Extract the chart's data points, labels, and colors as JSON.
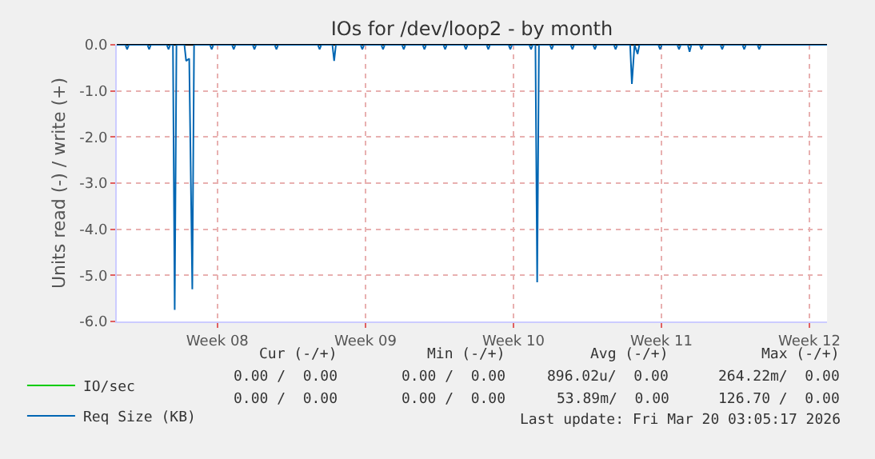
{
  "chart_data": {
    "type": "line",
    "title": "IOs for /dev/loop2 - by month",
    "ylabel": "Units read (-) / write (+)",
    "xlim": [
      "2026-02-11T05:45",
      "2026-03-16T20:00"
    ],
    "xticks": [
      {
        "value": "2026-02-16",
        "label": "Week 08"
      },
      {
        "value": "2026-02-23",
        "label": "Week 09"
      },
      {
        "value": "2026-03-02",
        "label": "Week 10"
      },
      {
        "value": "2026-03-09",
        "label": "Week 11"
      },
      {
        "value": "2026-03-16",
        "label": "Week 12"
      }
    ],
    "ylim": [
      -6,
      0
    ],
    "yticks": [
      {
        "value": -6,
        "label": "-6.0"
      },
      {
        "value": -5,
        "label": "-5.0"
      },
      {
        "value": -4,
        "label": "-4.0"
      },
      {
        "value": -3,
        "label": "-3.0"
      },
      {
        "value": -2,
        "label": "-2.0"
      },
      {
        "value": -1,
        "label": "-1.0"
      },
      {
        "value": 0,
        "label": "0.0"
      }
    ],
    "grid": true,
    "legend": "bottom left",
    "marker": "none",
    "line_style": "solid",
    "series": [
      {
        "name": "IO/sec",
        "color": "#00cc00"
      },
      {
        "name": "Req Size (KB)",
        "color": "#0066b3",
        "x": [
          "2026-02-11T05:45",
          "2026-02-11T15:30",
          "2026-02-11T17:30",
          "2026-02-11T19:30",
          "2026-02-12T16:30",
          "2026-02-12T18:30",
          "2026-02-12T20:30",
          "2026-02-13T14:30",
          "2026-02-13T16:30",
          "2026-02-13T18:30",
          "2026-02-13T21:30",
          "2026-02-13T23:30",
          "2026-02-14T01:30",
          "2026-02-14T10:30",
          "2026-02-14T12:30",
          "2026-02-14T16:00",
          "2026-02-14T19:30",
          "2026-02-14T21:30",
          "2026-02-15T15:30",
          "2026-02-15T17:30",
          "2026-02-15T19:30",
          "2026-02-16T16:30",
          "2026-02-16T18:30",
          "2026-02-16T20:30",
          "2026-02-17T16:00",
          "2026-02-17T18:00",
          "2026-02-17T20:00",
          "2026-02-18T17:00",
          "2026-02-18T19:00",
          "2026-02-18T21:00",
          "2026-02-20T18:00",
          "2026-02-20T20:00",
          "2026-02-20T22:00",
          "2026-02-21T10:30",
          "2026-02-21T12:30",
          "2026-02-21T14:30",
          "2026-02-22T18:30",
          "2026-02-22T20:30",
          "2026-02-22T22:30",
          "2026-02-23T18:00",
          "2026-02-23T20:00",
          "2026-02-23T22:00",
          "2026-02-24T17:30",
          "2026-02-24T19:30",
          "2026-02-24T21:30",
          "2026-02-25T17:00",
          "2026-02-25T19:00",
          "2026-02-25T21:00",
          "2026-02-26T16:30",
          "2026-02-26T18:30",
          "2026-02-26T20:30",
          "2026-02-27T16:00",
          "2026-02-27T18:00",
          "2026-02-27T20:00",
          "2026-02-28T17:30",
          "2026-02-28T19:30",
          "2026-02-28T21:30",
          "2026-03-01T18:30",
          "2026-03-01T20:30",
          "2026-03-01T22:30",
          "2026-03-02T18:00",
          "2026-03-02T20:00",
          "2026-03-02T22:00",
          "2026-03-03T01:00",
          "2026-03-03T03:00",
          "2026-03-03T05:00",
          "2026-03-03T17:30",
          "2026-03-03T19:30",
          "2026-03-03T21:30",
          "2026-03-04T17:00",
          "2026-03-04T19:00",
          "2026-03-04T21:00",
          "2026-03-05T18:30",
          "2026-03-05T20:30",
          "2026-03-05T22:30",
          "2026-03-06T18:00",
          "2026-03-06T20:00",
          "2026-03-06T22:00",
          "2026-03-07T12:30",
          "2026-03-07T14:30",
          "2026-03-07T17:30",
          "2026-03-07T21:00",
          "2026-03-07T23:00",
          "2026-03-08T20:30",
          "2026-03-08T22:30",
          "2026-03-09T00:30",
          "2026-03-09T18:00",
          "2026-03-09T20:00",
          "2026-03-09T22:00",
          "2026-03-10T06:00",
          "2026-03-10T08:00",
          "2026-03-10T10:00",
          "2026-03-10T19:30",
          "2026-03-10T21:30",
          "2026-03-10T23:30",
          "2026-03-11T19:00",
          "2026-03-11T21:00",
          "2026-03-11T23:00",
          "2026-03-12T20:00",
          "2026-03-12T22:00",
          "2026-03-13T00:00",
          "2026-03-13T13:00",
          "2026-03-13T15:00",
          "2026-03-13T17:00",
          "2026-03-16T20:00"
        ],
        "values": [
          0,
          0,
          -0.1,
          0,
          0,
          -0.1,
          0,
          0,
          -0.1,
          0,
          0,
          -5.75,
          0,
          0,
          -0.35,
          -0.3,
          -5.3,
          0,
          0,
          -0.1,
          0,
          0,
          -0.1,
          0,
          0,
          -0.1,
          0,
          0,
          -0.1,
          0,
          0,
          -0.1,
          0,
          0,
          -0.35,
          0,
          0,
          -0.1,
          0,
          0,
          -0.1,
          0,
          0,
          -0.1,
          0,
          0,
          -0.1,
          0,
          0,
          -0.1,
          0,
          0,
          -0.1,
          0,
          0,
          -0.1,
          0,
          0,
          -0.1,
          0,
          0,
          -0.1,
          0,
          0,
          -5.15,
          0,
          0,
          -0.1,
          0,
          0,
          -0.1,
          0,
          0,
          -0.1,
          0,
          0,
          -0.1,
          0,
          0,
          -0.85,
          0,
          -0.2,
          0,
          0,
          -0.1,
          0,
          0,
          -0.1,
          0,
          0,
          -0.15,
          0,
          0,
          -0.1,
          0,
          0,
          -0.1,
          0,
          0,
          -0.1,
          0,
          0,
          -0.1,
          0,
          0
        ]
      }
    ],
    "annotations": [
      "Cur (-/+)",
      "Min (-/+)",
      "Avg (-/+)",
      "Max (-/+)",
      "0.00 /  0.00",
      "0.00 /  0.00",
      "896.02u/  0.00",
      "264.22m/  0.00",
      "0.00 /  0.00",
      "0.00 /  0.00",
      "53.89m/  0.00",
      "126.70 /  0.00",
      "Last update: Fri Mar 20 03:05:17 2026"
    ]
  }
}
